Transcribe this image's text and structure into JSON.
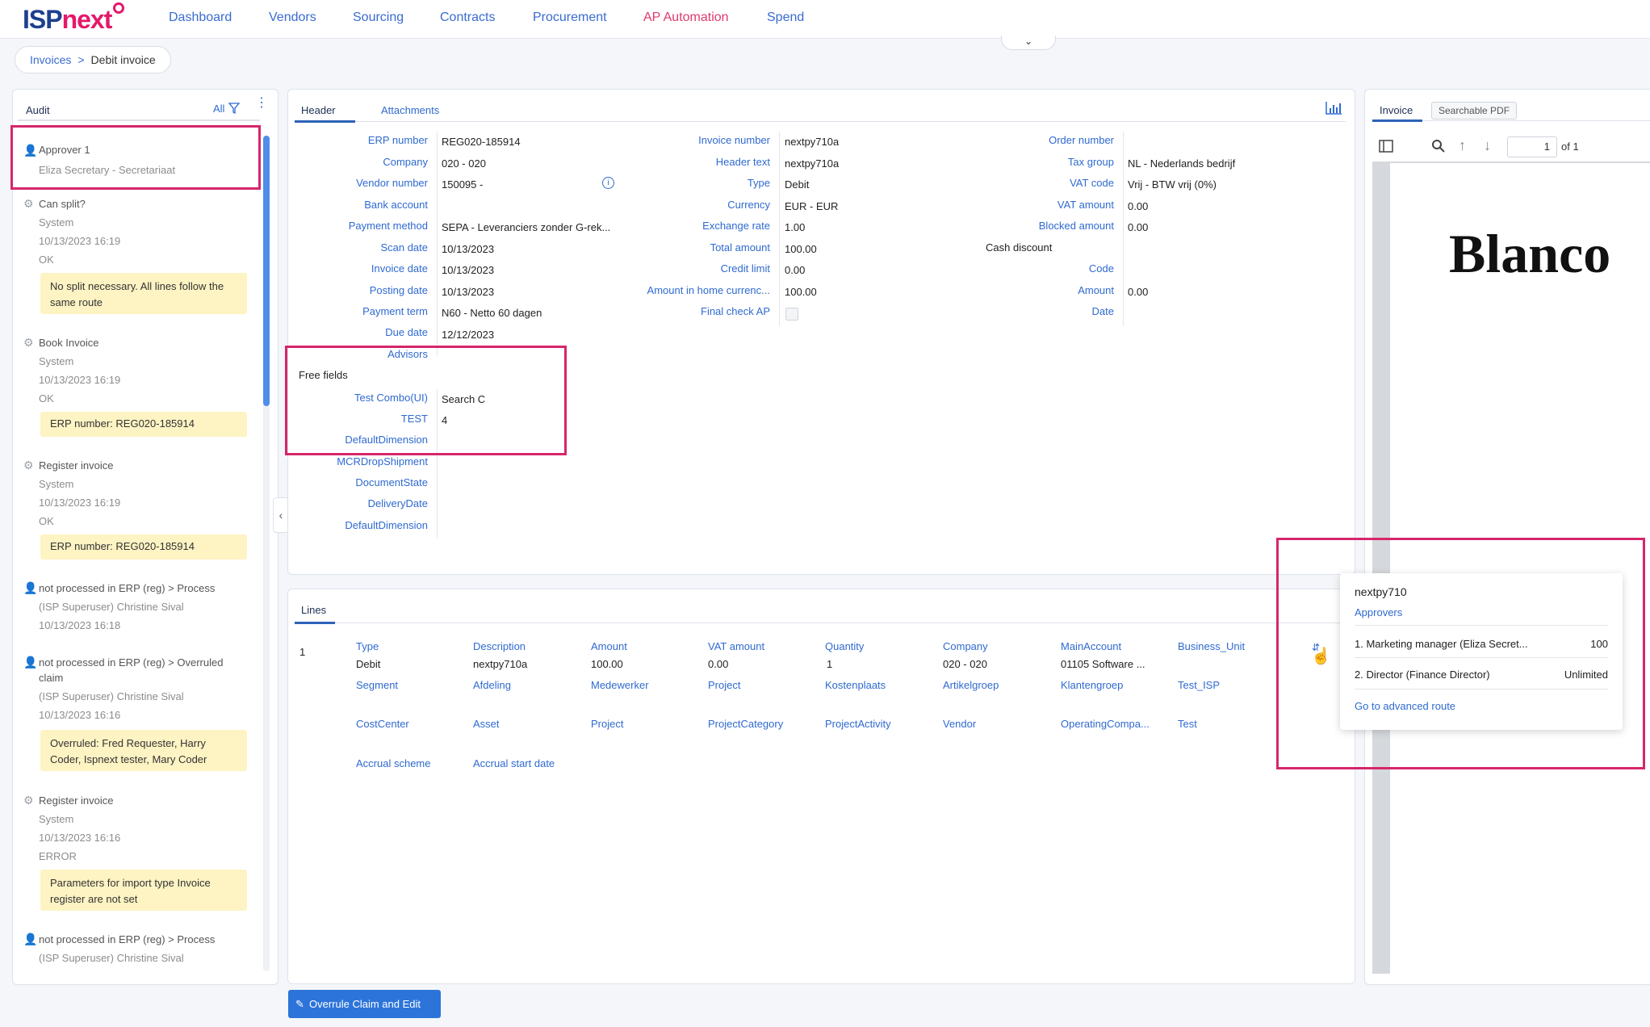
{
  "brand": {
    "part1": "ISP",
    "part2": "next"
  },
  "nav": [
    "Dashboard",
    "Vendors",
    "Sourcing",
    "Contracts",
    "Procurement",
    "AP Automation",
    "Spend"
  ],
  "breadcrumb": {
    "parent": "Invoices",
    "current": "Debit invoice"
  },
  "audit": {
    "tab": "Audit",
    "filter_label": "All",
    "items": [
      {
        "title": "Approver 1",
        "lines": [
          "Eliza Secretary - Secretariaat"
        ],
        "note": ""
      },
      {
        "title": "Can split?",
        "lines": [
          "System",
          "10/13/2023 16:19",
          "OK"
        ],
        "note": "No split necessary. All lines follow the same route"
      },
      {
        "title": "Book Invoice",
        "lines": [
          "System",
          "10/13/2023 16:19",
          "OK"
        ],
        "note": "ERP number: REG020-185914"
      },
      {
        "title": "Register invoice",
        "lines": [
          "System",
          "10/13/2023 16:19",
          "OK"
        ],
        "note": "ERP number: REG020-185914"
      },
      {
        "title": "not processed in ERP (reg) > Process",
        "lines": [
          "(ISP Superuser) Christine Sival",
          "10/13/2023 16:18"
        ],
        "note": ""
      },
      {
        "title": "not processed in ERP (reg) > Overruled",
        "title2": "claim",
        "lines": [
          "(ISP Superuser) Christine Sival",
          "10/13/2023 16:16"
        ],
        "note": "Overruled: Fred Requester, Harry Coder, Ispnext tester, Mary Coder"
      },
      {
        "title": "Register invoice",
        "lines": [
          "System",
          "10/13/2023 16:16",
          "ERROR"
        ],
        "note": "Parameters for import type Invoice register are not set"
      },
      {
        "title": "not processed in ERP (reg) > Process",
        "lines": [
          "(ISP Superuser) Christine Sival"
        ],
        "note": ""
      }
    ]
  },
  "header_tabs": {
    "header": "Header",
    "attachments": "Attachments"
  },
  "header_col1": [
    {
      "label": "ERP number",
      "value": "REG020-185914"
    },
    {
      "label": "Company",
      "value": "020 - 020"
    },
    {
      "label": "Vendor number",
      "value": "150095 -"
    },
    {
      "label": "Bank account",
      "value": ""
    },
    {
      "label": "Payment method",
      "value": "SEPA - Leveranciers zonder G-rek..."
    },
    {
      "label": "Scan date",
      "value": "10/13/2023"
    },
    {
      "label": "Invoice date",
      "value": "10/13/2023"
    },
    {
      "label": "Posting date",
      "value": "10/13/2023"
    },
    {
      "label": "Payment term",
      "value": "N60 - Netto 60 dagen"
    },
    {
      "label": "Due date",
      "value": "12/12/2023"
    },
    {
      "label": "Advisors",
      "value": ""
    }
  ],
  "free_fields_title": "Free fields",
  "free_fields": [
    {
      "label": "Test Combo(UI)",
      "value": "Search C"
    },
    {
      "label": "TEST",
      "value": "4"
    },
    {
      "label": "DefaultDimension",
      "value": ""
    },
    {
      "label": "MCRDropShipment",
      "value": ""
    },
    {
      "label": "DocumentState",
      "value": ""
    },
    {
      "label": "DeliveryDate",
      "value": ""
    },
    {
      "label": "DefaultDimension",
      "value": ""
    }
  ],
  "header_col2": [
    {
      "label": "Invoice number",
      "value": "nextpy710a"
    },
    {
      "label": "Header text",
      "value": "nextpy710a"
    },
    {
      "label": "Type",
      "value": "Debit"
    },
    {
      "label": "Currency",
      "value": "EUR - EUR"
    },
    {
      "label": "Exchange rate",
      "value": "1.00"
    },
    {
      "label": "Total amount",
      "value": "100.00"
    },
    {
      "label": "Credit limit",
      "value": "0.00"
    },
    {
      "label": "Amount in home currenc...",
      "value": "100.00"
    },
    {
      "label": "Final check AP",
      "value": ""
    }
  ],
  "header_col3": [
    {
      "label": "Order number",
      "value": ""
    },
    {
      "label": "Tax group",
      "value": "NL - Nederlands bedrijf"
    },
    {
      "label": "VAT code",
      "value": "Vrij - BTW vrij (0%)"
    },
    {
      "label": "VAT amount",
      "value": "0.00"
    },
    {
      "label": "Blocked amount",
      "value": "0.00"
    }
  ],
  "cash_discount": {
    "title": "Cash discount",
    "rows": [
      {
        "label": "Code",
        "value": ""
      },
      {
        "label": "Amount",
        "value": "0.00"
      },
      {
        "label": "Date",
        "value": ""
      }
    ]
  },
  "lines": {
    "tab": "Lines",
    "row_number": "1",
    "row1": [
      {
        "label": "Type",
        "value": "Debit"
      },
      {
        "label": "Description",
        "value": "nextpy710a"
      },
      {
        "label": "Amount",
        "value": "100.00"
      },
      {
        "label": "VAT amount",
        "value": "0.00"
      },
      {
        "label": "Quantity",
        "value": "1"
      },
      {
        "label": "Company",
        "value": "020 - 020"
      },
      {
        "label": "MainAccount",
        "value": "01105 Software ..."
      },
      {
        "label": "Business_Unit",
        "value": ""
      }
    ],
    "row2": [
      "Segment",
      "Afdeling",
      "Medewerker",
      "Project",
      "Kostenplaats",
      "Artikelgroep",
      "Klantengroep",
      "Test_ISP"
    ],
    "row3": [
      "CostCenter",
      "Asset",
      "Project",
      "ProjectCategory",
      "ProjectActivity",
      "Vendor",
      "OperatingCompa...",
      "Test"
    ],
    "row4": [
      "Accrual scheme",
      "Accrual start date"
    ]
  },
  "invoice_pane": {
    "tab_invoice": "Invoice",
    "tab_pdf": "Searchable PDF",
    "page_value": "1",
    "page_of": "of 1",
    "document_text": "Blanco"
  },
  "popover": {
    "title": "nextpy710",
    "section": "Approvers",
    "approvers": [
      {
        "name": "1. Marketing manager (Eliza Secret...",
        "limit": "100"
      },
      {
        "name": "2. Director (Finance Director)",
        "limit": "Unlimited"
      }
    ],
    "link": "Go to advanced route"
  },
  "actions": {
    "overrule": "Overrule Claim and Edit"
  },
  "colors": {
    "brand_blue": "#1c3f8f",
    "brand_pink": "#e5186a",
    "link": "#2f6ad0",
    "highlight": "#d6266b",
    "note_bg": "#fdf3c3",
    "primary": "#2d74da"
  }
}
